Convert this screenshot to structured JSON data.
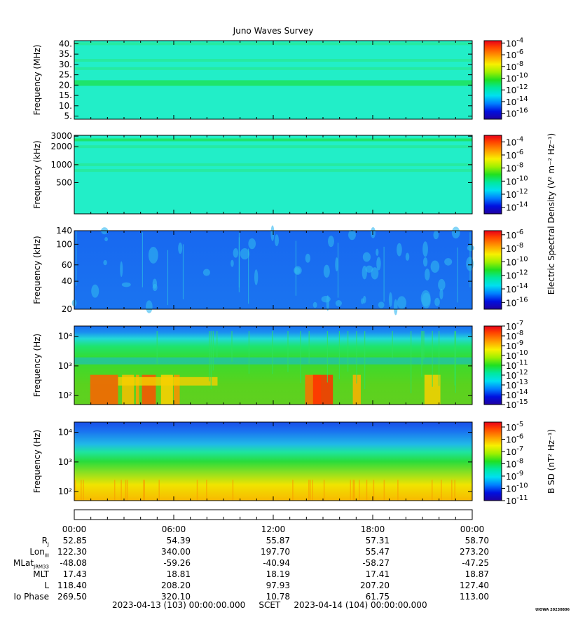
{
  "title": "Juno Waves Survey",
  "chart_data": [
    {
      "type": "heatmap",
      "ylabel": "Frequency (MHz)",
      "y_ticks": [
        "5.",
        "10.",
        "15.",
        "20.",
        "25.",
        "30.",
        "35.",
        "40."
      ],
      "y_values": [
        5,
        10,
        15,
        20,
        25,
        30,
        35,
        40
      ],
      "ylim": [
        3.5,
        41.5
      ],
      "y_scale": "linear",
      "cbar_exponents": [
        "-4",
        "-6",
        "-8",
        "-10",
        "-12",
        "-14",
        "-16"
      ],
      "cbar_values": [
        -4,
        -6,
        -8,
        -10,
        -12,
        -14,
        -16
      ],
      "cbar_range": [
        -17,
        -3.6
      ],
      "cbar_label": "",
      "description_colors": {
        "background": "#22eec8",
        "band": "#1ee46c"
      },
      "bands_y": [
        21,
        28,
        32,
        40
      ]
    },
    {
      "type": "heatmap",
      "ylabel": "Frequency (kHz)",
      "y_ticks": [
        "500",
        "1000",
        "2000",
        "3000"
      ],
      "y_values": [
        500,
        1000,
        2000,
        3000
      ],
      "ylim": [
        150,
        3100
      ],
      "y_scale": "log",
      "cbar_exponents": [
        "-4",
        "-6",
        "-8",
        "-10",
        "-12",
        "-14"
      ],
      "cbar_values": [
        -4,
        -6,
        -8,
        -10,
        -12,
        -14
      ],
      "cbar_range": [
        -15,
        -3
      ],
      "cbar_label": "",
      "description_colors": {
        "background": "#22eec8",
        "band": "#1ee46c"
      },
      "bands_y": [
        2600,
        2000,
        1000,
        800
      ]
    },
    {
      "type": "heatmap",
      "ylabel": "Frequency (kHz)",
      "y_ticks": [
        "20",
        "40",
        "60",
        "100",
        "140"
      ],
      "y_values": [
        20,
        40,
        60,
        100,
        140
      ],
      "ylim": [
        20,
        140
      ],
      "y_scale": "log",
      "cbar_exponents": [
        "-6",
        "-8",
        "-10",
        "-12",
        "-14",
        "-16"
      ],
      "cbar_values": [
        -6,
        -8,
        -10,
        -12,
        -14,
        -16
      ],
      "cbar_range": [
        -17,
        -5.4
      ],
      "cbar_label": "Electric Spectral Density (V² m⁻² Hz⁻¹)",
      "description_colors": {
        "background": "#1a6ef2"
      },
      "bands_y": []
    },
    {
      "type": "heatmap",
      "ylabel": "Frequency (Hz)",
      "y_ticks": [
        "10²",
        "10³",
        "10⁴"
      ],
      "y_values": [
        100,
        1000,
        10000
      ],
      "ylim": [
        50,
        22000
      ],
      "y_scale": "log",
      "cbar_exponents": [
        "-7",
        "-8",
        "-9",
        "-10",
        "-11",
        "-12",
        "-13",
        "-14",
        "-15"
      ],
      "cbar_values": [
        -7,
        -8,
        -9,
        -10,
        -11,
        -12,
        -13,
        -14,
        -15
      ],
      "cbar_range": [
        -15,
        -7
      ],
      "cbar_label": "",
      "description_colors": {
        "low": "#32c832",
        "mid": "#1ee46c",
        "high": "#1a6ef2"
      },
      "bands_y": []
    },
    {
      "type": "heatmap",
      "ylabel": "Frequency (Hz)",
      "y_ticks": [
        "10²",
        "10³",
        "10⁴"
      ],
      "y_values": [
        100,
        1000,
        10000
      ],
      "ylim": [
        50,
        22000
      ],
      "y_scale": "log",
      "cbar_exponents": [
        "-5",
        "-6",
        "-7",
        "-8",
        "-9",
        "-10",
        "-11"
      ],
      "cbar_values": [
        -5,
        -6,
        -7,
        -8,
        -9,
        -10,
        -11
      ],
      "cbar_range": [
        -11,
        -4.6
      ],
      "cbar_label": "B SD (nT² Hz⁻¹)",
      "description_colors": {
        "low": "#f0e000",
        "mid": "#32c832",
        "high": "#1a6ef2"
      },
      "bands_y": []
    }
  ],
  "time_axis": {
    "hours": [
      0,
      6,
      12,
      18,
      24
    ],
    "labels": [
      "00:00",
      "06:00",
      "12:00",
      "18:00",
      "00:00"
    ]
  },
  "ephemeris": [
    {
      "label": "R",
      "sub": "J",
      "values": [
        "52.85",
        "54.39",
        "55.87",
        "57.31",
        "58.70"
      ]
    },
    {
      "label": "Lon",
      "sub": "III",
      "values": [
        "122.30",
        "340.00",
        "197.70",
        "55.47",
        "273.20"
      ]
    },
    {
      "label": "MLat",
      "sub": "JRM33",
      "values": [
        "-48.08",
        "-59.26",
        "-40.94",
        "-58.27",
        "-47.25"
      ]
    },
    {
      "label": "MLT",
      "sub": "",
      "values": [
        "17.43",
        "18.81",
        "18.19",
        "17.41",
        "18.87"
      ]
    },
    {
      "label": "L",
      "sub": "",
      "values": [
        "118.40",
        "208.20",
        "97.93",
        "207.20",
        "127.40"
      ]
    },
    {
      "label": "Io Phase",
      "sub": "",
      "values": [
        "269.50",
        "320.10",
        "10.78",
        "61.75",
        "113.00"
      ]
    }
  ],
  "footer": {
    "start": "2023-04-13 (103) 00:00:00.000",
    "middle": "SCET",
    "end": "2023-04-14 (104) 00:00:00.000"
  },
  "credit": "UIOWA 20230806"
}
